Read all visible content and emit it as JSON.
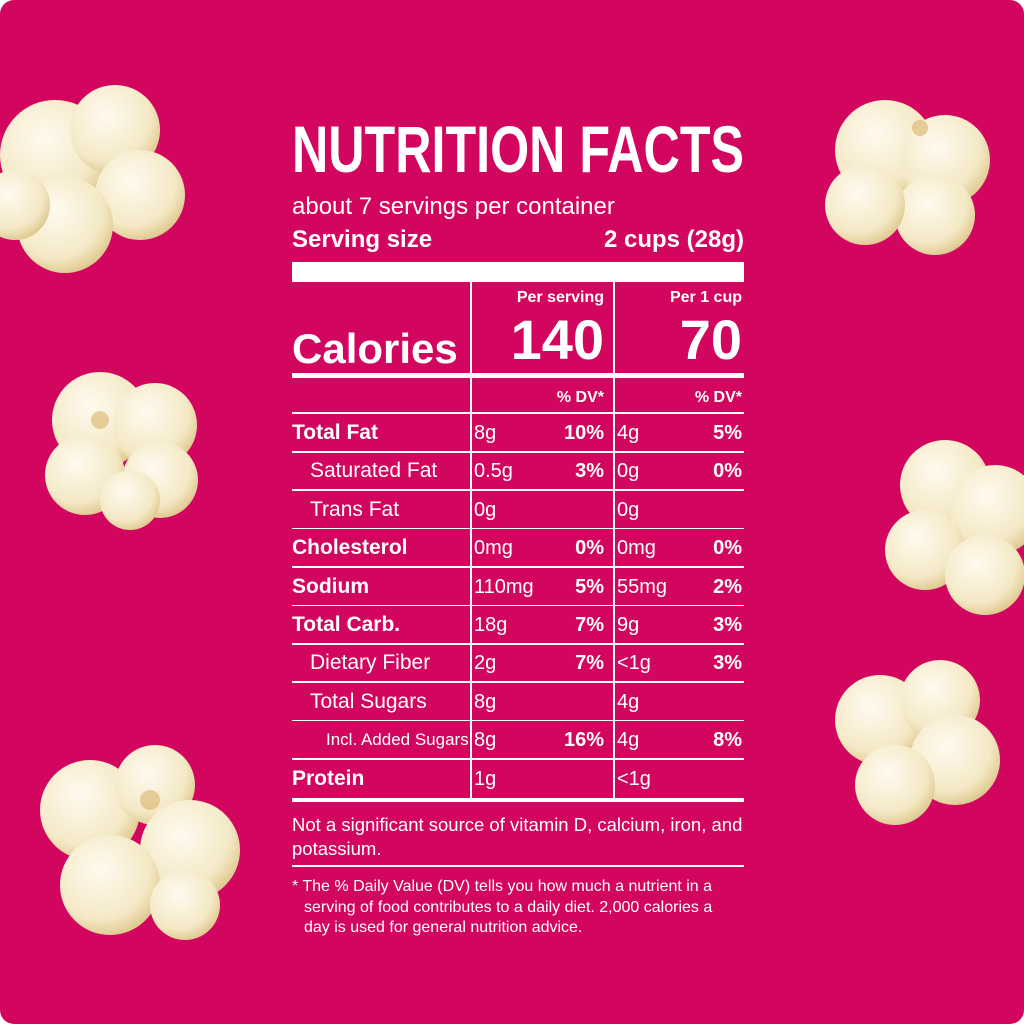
{
  "title": "NUTRITION FACTS",
  "servings": "about 7 servings per container",
  "serving_size": {
    "label": "Serving size",
    "value": "2 cups (28g)"
  },
  "calories_label": "Calories",
  "columns": [
    {
      "heading": "Per serving",
      "calories": "140",
      "dv_heading": "% DV*"
    },
    {
      "heading": "Per 1 cup",
      "calories": "70",
      "dv_heading": "% DV*"
    }
  ],
  "rows": [
    {
      "name": "Total Fat",
      "per_serving": {
        "amount": "8g",
        "dv": "10%"
      },
      "per_cup": {
        "amount": "4g",
        "dv": "5%"
      }
    },
    {
      "name": "Saturated Fat",
      "per_serving": {
        "amount": "0.5g",
        "dv": "3%"
      },
      "per_cup": {
        "amount": "0g",
        "dv": "0%"
      }
    },
    {
      "name": "Trans Fat",
      "per_serving": {
        "amount": "0g"
      },
      "per_cup": {
        "amount": "0g"
      }
    },
    {
      "name": "Cholesterol",
      "per_serving": {
        "amount": "0mg",
        "dv": "0%"
      },
      "per_cup": {
        "amount": "0mg",
        "dv": "0%"
      }
    },
    {
      "name": "Sodium",
      "per_serving": {
        "amount": "110mg",
        "dv": "5%"
      },
      "per_cup": {
        "amount": "55mg",
        "dv": "2%"
      }
    },
    {
      "name": "Total Carb.",
      "per_serving": {
        "amount": "18g",
        "dv": "7%"
      },
      "per_cup": {
        "amount": "9g",
        "dv": "3%"
      }
    },
    {
      "name": "Dietary Fiber",
      "per_serving": {
        "amount": "2g",
        "dv": "7%"
      },
      "per_cup": {
        "amount": "<1g",
        "dv": "3%"
      }
    },
    {
      "name": "Total Sugars",
      "per_serving": {
        "amount": "8g"
      },
      "per_cup": {
        "amount": "4g"
      }
    },
    {
      "name": "Incl. Added Sugars",
      "per_serving": {
        "amount": "8g",
        "dv": "16%"
      },
      "per_cup": {
        "amount": "4g",
        "dv": "8%"
      }
    },
    {
      "name": "Protein",
      "per_serving": {
        "amount": "1g"
      },
      "per_cup": {
        "amount": "<1g"
      }
    }
  ],
  "note": "Not a significant source of vitamin D, calcium, iron, and potassium.",
  "footnote": "* The % Daily Value (DV) tells you how much a nutrient in a serving of food contributes to a daily diet. 2,000 calories a day is used for general nutrition advice."
}
